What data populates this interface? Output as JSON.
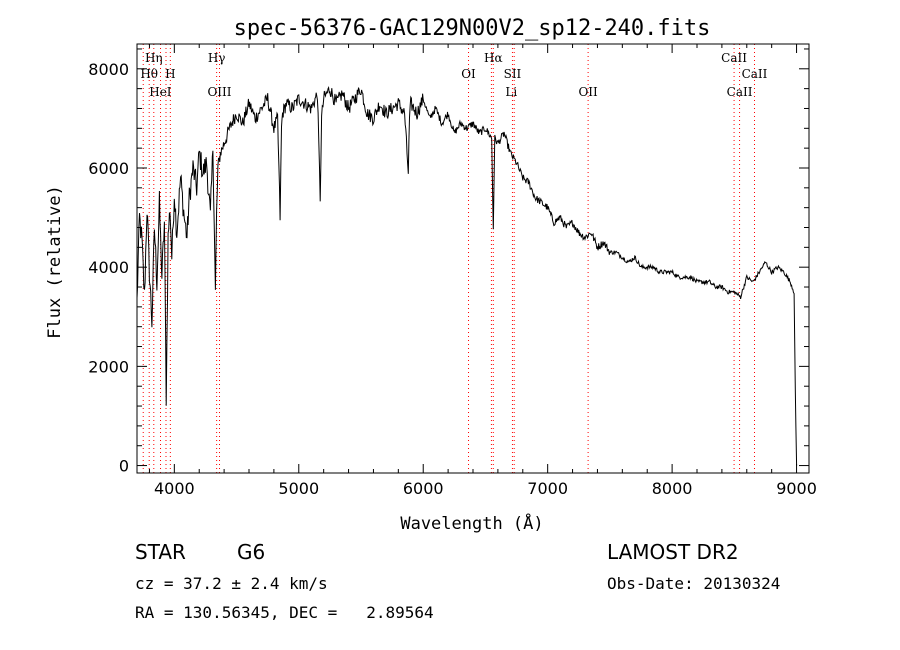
{
  "chart_data": {
    "type": "line",
    "title": "spec-56376-GAC129N00V2_sp12-240.fits",
    "xlabel": "Wavelength (Å)",
    "ylabel": "Flux (relative)",
    "xlim": [
      3700,
      9100
    ],
    "ylim": [
      -150,
      8500
    ],
    "xticks": [
      4000,
      5000,
      6000,
      7000,
      8000,
      9000
    ],
    "yticks": [
      0,
      2000,
      4000,
      6000,
      8000
    ],
    "grid": false,
    "series": [
      {
        "x": [
          3700,
          3720,
          3740,
          3760,
          3780,
          3800,
          3820,
          3840,
          3860,
          3880,
          3900,
          3920,
          3935,
          3950,
          3965,
          3980,
          4000,
          4020,
          4050,
          4080,
          4102,
          4120,
          4150,
          4180,
          4200,
          4230,
          4260,
          4290,
          4310,
          4330,
          4340,
          4350,
          4370,
          4400,
          4430,
          4460,
          4500,
          4550,
          4600,
          4650,
          4700,
          4750,
          4800,
          4830,
          4850,
          4861,
          4870,
          4900,
          4950,
          5000,
          5050,
          5100,
          5150,
          5172,
          5183,
          5200,
          5250,
          5300,
          5350,
          5400,
          5450,
          5500,
          5550,
          5600,
          5650,
          5700,
          5750,
          5800,
          5850,
          5880,
          5890,
          5900,
          5950,
          6000,
          6050,
          6100,
          6150,
          6200,
          6250,
          6300,
          6350,
          6400,
          6450,
          6500,
          6550,
          6563,
          6575,
          6600,
          6650,
          6700,
          6750,
          6800,
          6850,
          6900,
          6950,
          7000,
          7050,
          7100,
          7150,
          7200,
          7250,
          7300,
          7350,
          7400,
          7450,
          7500,
          7550,
          7600,
          7650,
          7700,
          7750,
          7800,
          7850,
          7900,
          7950,
          8000,
          8050,
          8100,
          8150,
          8200,
          8250,
          8300,
          8350,
          8400,
          8450,
          8500,
          8550,
          8600,
          8650,
          8700,
          8750,
          8800,
          8850,
          8900,
          8950,
          8980,
          8990,
          9000
        ],
        "y": [
          3300,
          5000,
          4500,
          3400,
          5200,
          3900,
          2900,
          4800,
          3700,
          5300,
          3800,
          4900,
          1400,
          4600,
          5200,
          4200,
          5500,
          4700,
          5800,
          5000,
          4600,
          5400,
          6000,
          5600,
          6300,
          5900,
          6100,
          5000,
          6400,
          3500,
          5100,
          6000,
          6300,
          6500,
          6700,
          6900,
          7100,
          6900,
          7300,
          7000,
          7200,
          7400,
          6800,
          7000,
          5000,
          6800,
          7100,
          7300,
          7200,
          7400,
          7300,
          7200,
          7500,
          5400,
          7000,
          7400,
          7600,
          7300,
          7500,
          7200,
          7400,
          7600,
          7100,
          7000,
          7300,
          7100,
          7200,
          7300,
          7100,
          5900,
          7000,
          7300,
          7100,
          7400,
          7000,
          7200,
          6900,
          7100,
          6700,
          6900,
          6800,
          6900,
          6700,
          6800,
          6600,
          4800,
          6600,
          6500,
          6700,
          6300,
          6100,
          5800,
          5700,
          5400,
          5300,
          5200,
          4900,
          5000,
          4800,
          4900,
          4700,
          4600,
          4700,
          4400,
          4500,
          4300,
          4300,
          4200,
          4100,
          4200,
          4000,
          4000,
          4000,
          3900,
          3900,
          3900,
          3800,
          3800,
          3800,
          3700,
          3700,
          3700,
          3600,
          3600,
          3500,
          3500,
          3400,
          3800,
          3700,
          3900,
          4100,
          3900,
          4000,
          3900,
          3700,
          3500,
          1500,
          0
        ]
      }
    ],
    "annotations": [
      {
        "label": "Hη",
        "wavelength": 3835,
        "row": 1
      },
      {
        "label": "Hθ",
        "wavelength": 3798,
        "row": 2
      },
      {
        "label": "H",
        "wavelength": 3968,
        "row": 2
      },
      {
        "label": "HeI",
        "wavelength": 3888,
        "row": 3
      },
      {
        "label": "Hγ",
        "wavelength": 4340,
        "row": 1
      },
      {
        "label": "OIII",
        "wavelength": 4363,
        "row": 3
      },
      {
        "label": "OI",
        "wavelength": 6364,
        "row": 2
      },
      {
        "label": "Hα",
        "wavelength": 6563,
        "row": 1
      },
      {
        "label": "SII",
        "wavelength": 6717,
        "row": 2
      },
      {
        "label": "Li",
        "wavelength": 6708,
        "row": 3
      },
      {
        "label": "OII",
        "wavelength": 7325,
        "row": 3
      },
      {
        "label": "CaII",
        "wavelength": 8498,
        "row": 1
      },
      {
        "label": "CaII",
        "wavelength": 8662,
        "row": 2
      },
      {
        "label": "CaII",
        "wavelength": 8542,
        "row": 3
      }
    ],
    "marker_lines": [
      3750,
      3798,
      3835,
      3889,
      3933,
      3968,
      4340,
      4363,
      6364,
      6548,
      6563,
      6717,
      6731,
      7325,
      8498,
      8542,
      8662
    ]
  },
  "info": {
    "object_class": "STAR",
    "subclass": "G6",
    "survey": "LAMOST DR2",
    "cz": "cz = 37.2 ± 2.4 km/s",
    "obs_date": "Obs-Date: 20130324",
    "coords": "RA = 130.56345, DEC =   2.89564"
  },
  "colors": {
    "axis": "#000000",
    "spectrum": "#000000",
    "marker": "#ff0000"
  }
}
